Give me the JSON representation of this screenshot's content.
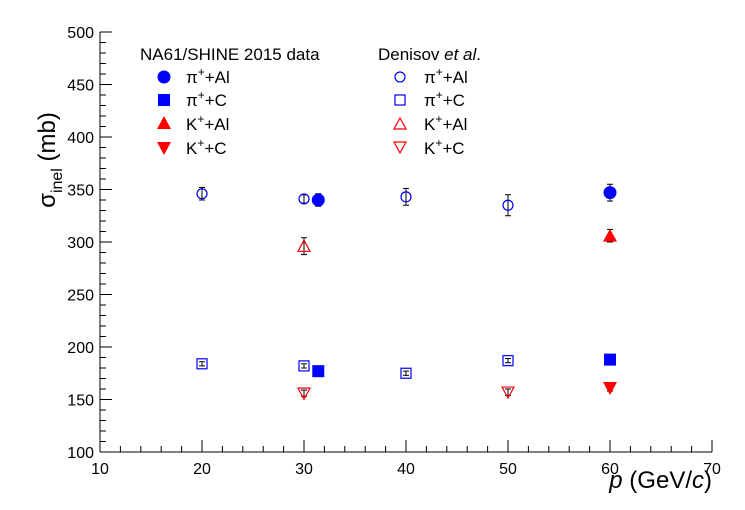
{
  "chart_data": {
    "type": "scatter",
    "title": "",
    "xlim": [
      10,
      70
    ],
    "ylim": [
      100,
      500
    ],
    "x_ticks": [
      "10",
      "20",
      "30",
      "40",
      "50",
      "60",
      "70"
    ],
    "y_ticks": [
      "100",
      "150",
      "200",
      "250",
      "300",
      "350",
      "400",
      "450",
      "500"
    ],
    "ylabel": {
      "main": "σ",
      "sub": "inel",
      "unit": " (mb)"
    },
    "xlabel": {
      "p": "p",
      "pre": " (GeV/",
      "c": "c",
      "post": ")"
    },
    "legend": {
      "groups": [
        {
          "header": "NA61/SHINE 2015 data"
        },
        {
          "header_main": "Denisov ",
          "header_italic": "et al",
          "header_tail": "."
        }
      ],
      "entries": [
        {
          "base": "π",
          "sup": "+",
          "rest": "+Al"
        },
        {
          "base": "π",
          "sup": "+",
          "rest": "+C"
        },
        {
          "base": "K",
          "sup": "+",
          "rest": "+Al"
        },
        {
          "base": "K",
          "sup": "+",
          "rest": "+C"
        }
      ]
    },
    "series": [
      {
        "group": "NA61/SHINE 2015 data",
        "entry": "π+ +Al",
        "marker": "circle",
        "filled": true,
        "color": "#0000ff",
        "points": [
          {
            "x": 31.4,
            "y": 340,
            "err": 6
          },
          {
            "x": 60,
            "y": 347,
            "err": 8
          }
        ]
      },
      {
        "group": "NA61/SHINE 2015 data",
        "entry": "π+ +C",
        "marker": "square",
        "filled": true,
        "color": "#0000ff",
        "points": [
          {
            "x": 31.4,
            "y": 177,
            "err": 3
          },
          {
            "x": 60,
            "y": 188,
            "err": 4
          }
        ]
      },
      {
        "group": "NA61/SHINE 2015 data",
        "entry": "K+ +Al",
        "marker": "triangle-up",
        "filled": true,
        "color": "#ff0000",
        "points": [
          {
            "x": 60,
            "y": 306,
            "err": 6
          }
        ]
      },
      {
        "group": "NA61/SHINE 2015 data",
        "entry": "K+ +C",
        "marker": "triangle-down",
        "filled": true,
        "color": "#ff0000",
        "points": [
          {
            "x": 60,
            "y": 161,
            "err": 3
          }
        ]
      },
      {
        "group": "Denisov et al.",
        "entry": "π+ +Al",
        "marker": "circle",
        "filled": false,
        "color": "#0000ff",
        "points": [
          {
            "x": 20,
            "y": 346,
            "err": 6
          },
          {
            "x": 30,
            "y": 341,
            "err": 4
          },
          {
            "x": 40,
            "y": 343,
            "err": 8
          },
          {
            "x": 50,
            "y": 335,
            "err": 10
          }
        ]
      },
      {
        "group": "Denisov et al.",
        "entry": "π+ +C",
        "marker": "square",
        "filled": false,
        "color": "#0000ff",
        "points": [
          {
            "x": 20,
            "y": 184,
            "err": 2
          },
          {
            "x": 30,
            "y": 182,
            "err": 2
          },
          {
            "x": 40,
            "y": 175,
            "err": 2
          },
          {
            "x": 50,
            "y": 187,
            "err": 2
          }
        ]
      },
      {
        "group": "Denisov et al.",
        "entry": "K+ +Al",
        "marker": "triangle-up",
        "filled": false,
        "color": "#ff0000",
        "points": [
          {
            "x": 30,
            "y": 296,
            "err": 8
          }
        ]
      },
      {
        "group": "Denisov et al.",
        "entry": "K+ +C",
        "marker": "triangle-down",
        "filled": false,
        "color": "#ff0000",
        "points": [
          {
            "x": 30,
            "y": 156,
            "err": 3
          },
          {
            "x": 50,
            "y": 157,
            "err": 3
          }
        ]
      }
    ]
  }
}
